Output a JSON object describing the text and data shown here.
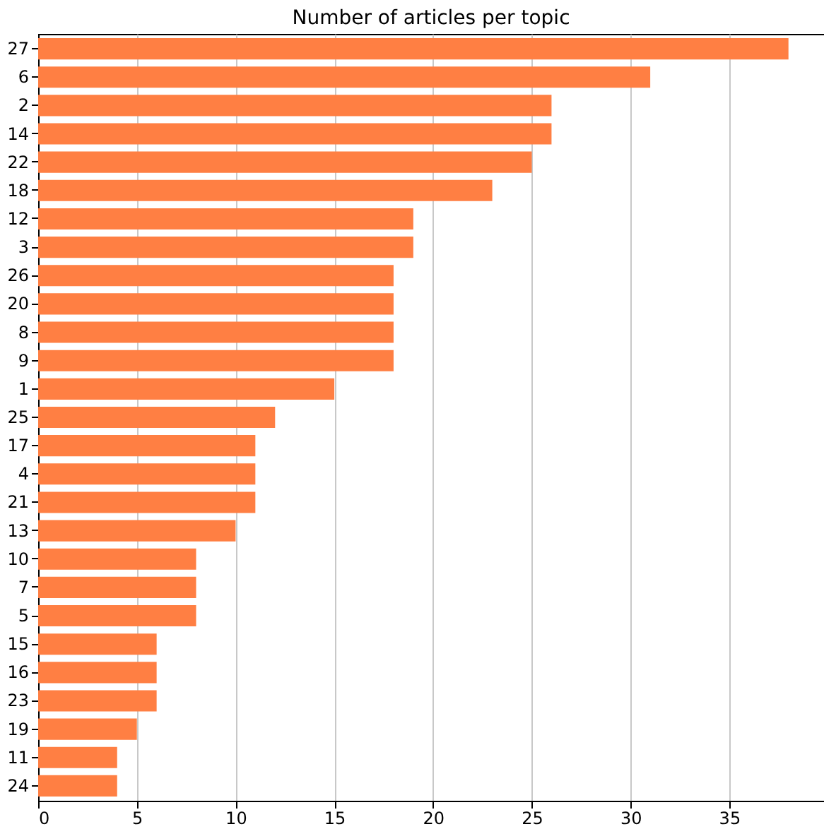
{
  "chart_data": {
    "type": "bar",
    "orientation": "horizontal",
    "title": "Number of articles per topic",
    "categories": [
      "27",
      "6",
      "2",
      "14",
      "22",
      "18",
      "12",
      "3",
      "26",
      "20",
      "8",
      "9",
      "1",
      "25",
      "17",
      "4",
      "21",
      "13",
      "10",
      "7",
      "5",
      "15",
      "16",
      "23",
      "19",
      "11",
      "24"
    ],
    "values": [
      38,
      31,
      26,
      26,
      25,
      23,
      19,
      19,
      18,
      18,
      18,
      18,
      15,
      12,
      11,
      11,
      11,
      10,
      8,
      8,
      8,
      6,
      6,
      6,
      5,
      4,
      4
    ],
    "color": "#ff7f43",
    "xlim": [
      0,
      39.8
    ],
    "xticks": [
      0,
      5,
      10,
      15,
      20,
      25,
      30,
      35
    ],
    "grid": "x"
  }
}
